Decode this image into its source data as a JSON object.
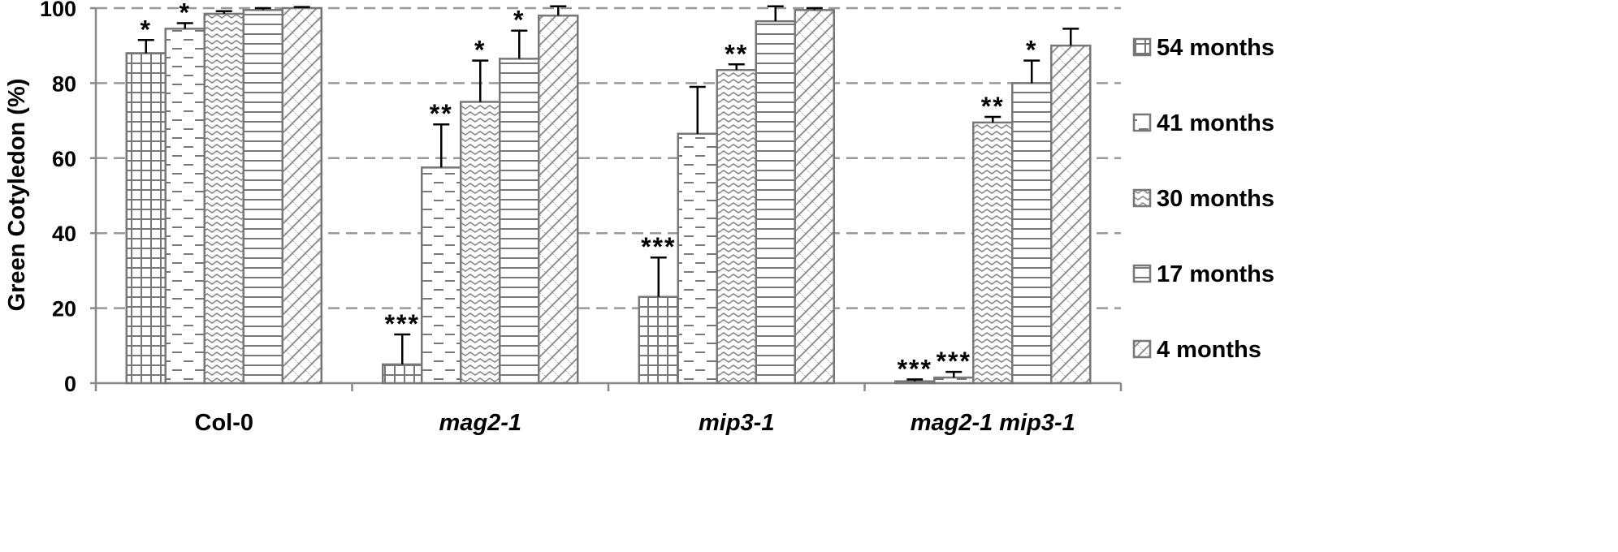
{
  "chart_data": {
    "type": "bar",
    "title": "",
    "xlabel": "",
    "ylabel": "Green Cotyledon (%)",
    "ylim": [
      0,
      100
    ],
    "yticks": [
      0,
      20,
      40,
      60,
      80,
      100
    ],
    "grid": true,
    "legend_position": "right",
    "categories": [
      "Col-0",
      "mag2-1",
      "mip3-1",
      "mag2-1 mip3-1"
    ],
    "category_italic": [
      false,
      true,
      true,
      true
    ],
    "series": [
      {
        "name": "54 months",
        "pattern": "grid",
        "values": [
          88,
          5,
          23,
          0.5
        ],
        "errors": [
          3.5,
          8,
          10.5,
          0.5
        ],
        "marks": [
          "*",
          "***",
          "***",
          "***"
        ]
      },
      {
        "name": "41 months",
        "pattern": "dash",
        "values": [
          94.5,
          57.5,
          66.5,
          1.5
        ],
        "errors": [
          1.5,
          11.5,
          12.5,
          1.5
        ],
        "marks": [
          "*",
          "**",
          "",
          "***"
        ]
      },
      {
        "name": "30 months",
        "pattern": "wave",
        "values": [
          98.5,
          75,
          83.5,
          69.5
        ],
        "errors": [
          0.7,
          11,
          1.5,
          1.5
        ],
        "marks": [
          "",
          "*",
          "**",
          "**"
        ]
      },
      {
        "name": "17 months",
        "pattern": "hline",
        "values": [
          99.5,
          86.5,
          96.5,
          80
        ],
        "errors": [
          0.5,
          7.5,
          4,
          6
        ],
        "marks": [
          "",
          "*",
          "",
          "*"
        ]
      },
      {
        "name": "4 months",
        "pattern": "diag",
        "values": [
          100,
          98,
          99.5,
          90
        ],
        "errors": [
          0.3,
          2.5,
          0.5,
          4.5
        ],
        "marks": [
          "",
          "",
          "",
          ""
        ]
      }
    ]
  }
}
